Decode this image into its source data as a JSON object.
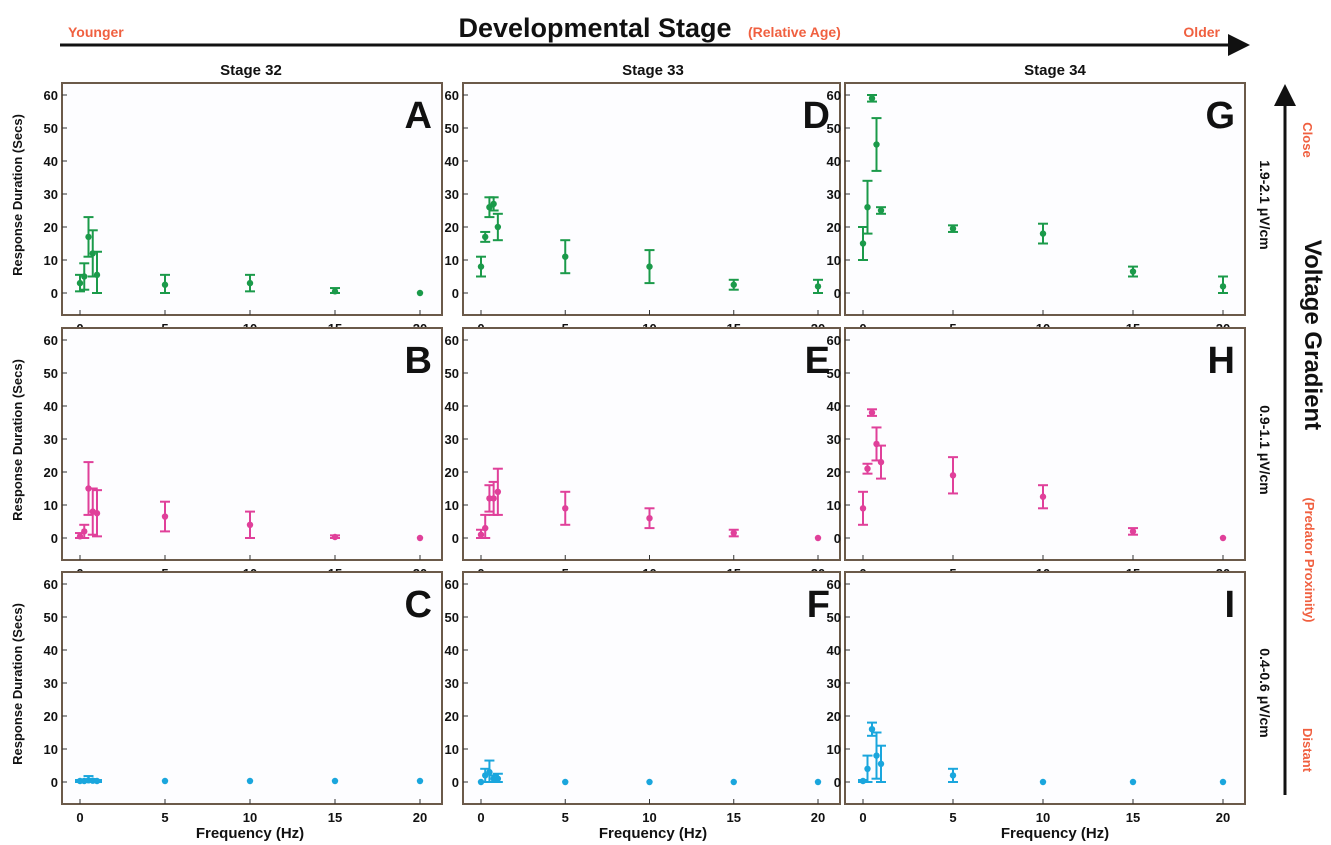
{
  "header": {
    "title": "Developmental Stage",
    "title_note": "(Relative Age)",
    "left_label": "Younger",
    "right_label": "Older"
  },
  "side": {
    "title": "Voltage Gradient",
    "title_note": "(Predator Proximity)",
    "top_label": "Close",
    "bottom_label": "Distant",
    "rows": [
      "1.9-2.1 μV/cm",
      "0.9-1.1 μV/cm",
      "0.4-0.6 μV/cm"
    ]
  },
  "columns": [
    "Stage 32",
    "Stage 33",
    "Stage 34"
  ],
  "ylabel": "Response Duration (Secs)",
  "xlabel": "Frequency (Hz)",
  "colors": {
    "row0": "#1b9a4a",
    "row1": "#e0409a",
    "row2": "#1aa6dd",
    "accent": "#f06040"
  },
  "chart_data": [
    {
      "panel": "A",
      "type": "scatter",
      "stage": "Stage 32",
      "gradient": "1.9-2.1 μV/cm",
      "xlim": [
        0,
        20
      ],
      "ylim": [
        0,
        60
      ],
      "x": [
        0,
        0.25,
        0.5,
        0.75,
        1,
        5,
        10,
        15,
        20
      ],
      "y": [
        3,
        5,
        17,
        12,
        5.5,
        2.5,
        3,
        0.5,
        0
      ],
      "err": [
        2.5,
        4,
        6,
        7,
        7,
        3,
        2.5,
        1,
        0
      ]
    },
    {
      "panel": "B",
      "type": "scatter",
      "stage": "Stage 32",
      "gradient": "0.9-1.1 μV/cm",
      "xlim": [
        0,
        20
      ],
      "ylim": [
        0,
        60
      ],
      "x": [
        0,
        0.25,
        0.5,
        0.75,
        1,
        5,
        10,
        15,
        20
      ],
      "y": [
        0.5,
        2,
        15,
        8,
        7.5,
        6.5,
        4,
        0.3,
        0
      ],
      "err": [
        1,
        2,
        8,
        7,
        7,
        4.5,
        4,
        0.5,
        0
      ]
    },
    {
      "panel": "C",
      "type": "scatter",
      "stage": "Stage 32",
      "gradient": "0.4-0.6 μV/cm",
      "xlim": [
        0,
        20
      ],
      "ylim": [
        0,
        60
      ],
      "x": [
        0,
        0.25,
        0.5,
        0.75,
        1,
        5,
        10,
        15,
        20
      ],
      "y": [
        0.3,
        0.3,
        0.5,
        0.4,
        0.3,
        0.3,
        0.3,
        0.3,
        0.3
      ],
      "err": [
        0.3,
        0.5,
        1.3,
        0.5,
        0.3,
        0,
        0,
        0,
        0
      ]
    },
    {
      "panel": "D",
      "type": "scatter",
      "stage": "Stage 33",
      "gradient": "1.9-2.1 μV/cm",
      "xlim": [
        0,
        20
      ],
      "ylim": [
        0,
        60
      ],
      "x": [
        0,
        0.25,
        0.5,
        0.75,
        1,
        5,
        10,
        15,
        20
      ],
      "y": [
        8,
        17,
        26,
        27,
        20,
        11,
        8,
        2.5,
        2
      ],
      "err": [
        3,
        1.5,
        3,
        2,
        4,
        5,
        5,
        1.5,
        2
      ]
    },
    {
      "panel": "E",
      "type": "scatter",
      "stage": "Stage 33",
      "gradient": "0.9-1.1 μV/cm",
      "xlim": [
        0,
        20
      ],
      "ylim": [
        0,
        60
      ],
      "x": [
        0,
        0.25,
        0.5,
        0.75,
        1,
        5,
        10,
        15,
        20
      ],
      "y": [
        1,
        3,
        12,
        12,
        14,
        9,
        6,
        1.5,
        0
      ],
      "err": [
        1.5,
        4,
        4,
        5,
        7,
        5,
        3,
        1,
        0
      ]
    },
    {
      "panel": "F",
      "type": "scatter",
      "stage": "Stage 33",
      "gradient": "0.4-0.6 μV/cm",
      "xlim": [
        0,
        20
      ],
      "ylim": [
        0,
        60
      ],
      "x": [
        0,
        0.25,
        0.5,
        0.75,
        1,
        5,
        10,
        15,
        20
      ],
      "y": [
        0,
        2,
        3,
        1,
        1,
        0,
        0,
        0,
        0
      ],
      "err": [
        0,
        2,
        3.5,
        1,
        1.5,
        0,
        0,
        0,
        0
      ]
    },
    {
      "panel": "G",
      "type": "scatter",
      "stage": "Stage 34",
      "gradient": "1.9-2.1 μV/cm",
      "xlim": [
        0,
        20
      ],
      "ylim": [
        0,
        60
      ],
      "x": [
        0,
        0.25,
        0.5,
        0.75,
        1,
        5,
        10,
        15,
        20
      ],
      "y": [
        15,
        26,
        59,
        45,
        25,
        19.5,
        18,
        6.5,
        2
      ],
      "err": [
        5,
        8,
        1,
        8,
        1,
        1,
        3,
        1.5,
        3
      ]
    },
    {
      "panel": "H",
      "type": "scatter",
      "stage": "Stage 34",
      "gradient": "0.9-1.1 μV/cm",
      "xlim": [
        0,
        20
      ],
      "ylim": [
        0,
        60
      ],
      "x": [
        0,
        0.25,
        0.5,
        0.75,
        1,
        5,
        10,
        15,
        20
      ],
      "y": [
        9,
        21,
        38,
        28.5,
        23,
        19,
        12.5,
        2,
        0
      ],
      "err": [
        5,
        1.5,
        1,
        5,
        5,
        5.5,
        3.5,
        1,
        0
      ]
    },
    {
      "panel": "I",
      "type": "scatter",
      "stage": "Stage 34",
      "gradient": "0.4-0.6 μV/cm",
      "xlim": [
        0,
        20
      ],
      "ylim": [
        0,
        60
      ],
      "x": [
        0,
        0.25,
        0.5,
        0.75,
        1,
        5,
        10,
        15,
        20
      ],
      "y": [
        0.3,
        4,
        16,
        8,
        5.5,
        2,
        0,
        0,
        0
      ],
      "err": [
        0.3,
        4,
        2,
        7,
        5.5,
        2,
        0,
        0,
        0
      ]
    }
  ]
}
